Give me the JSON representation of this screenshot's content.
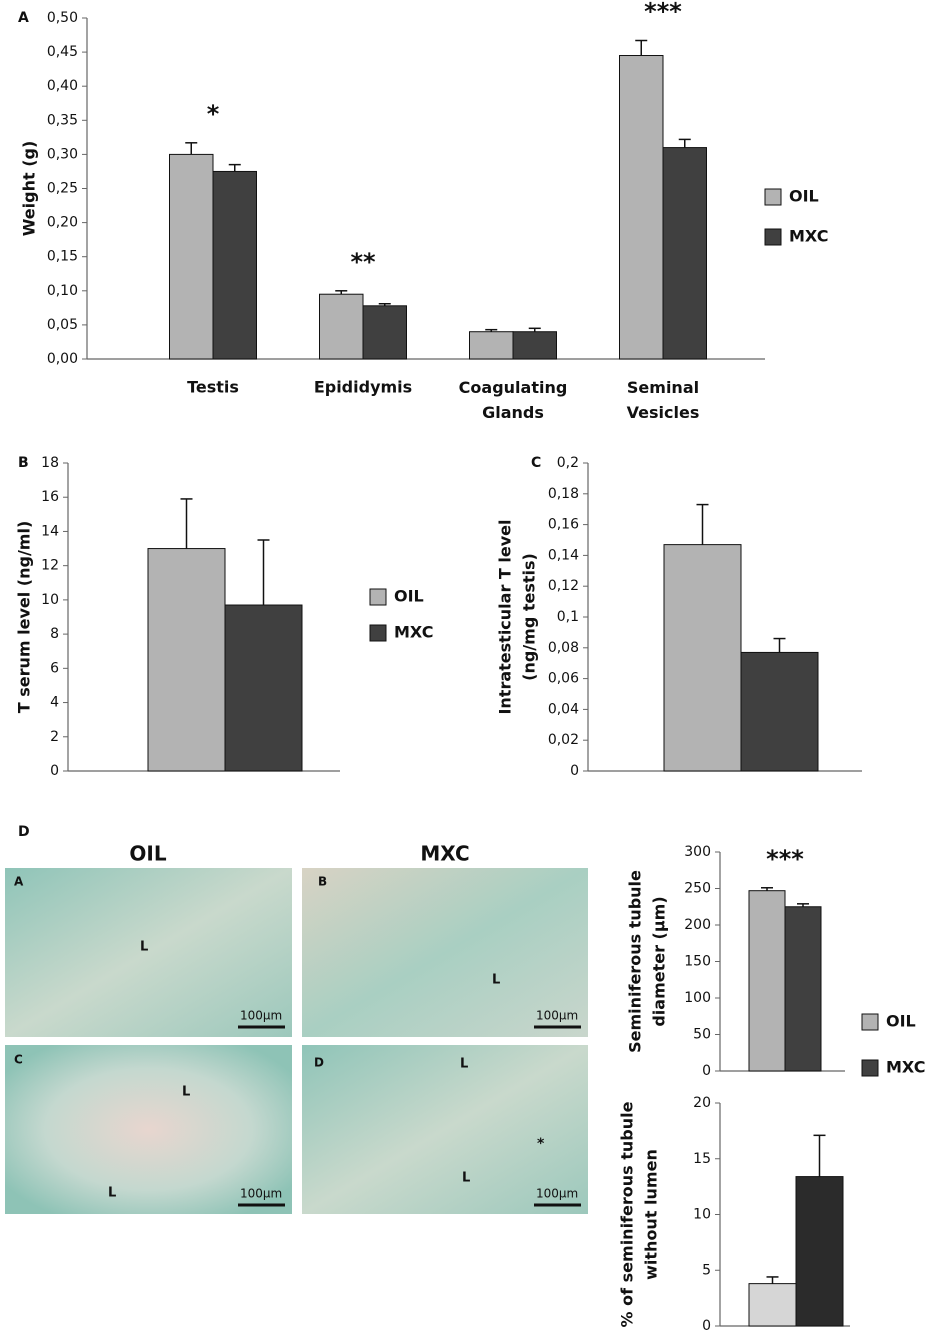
{
  "chart_data": [
    {
      "type": "bar",
      "panel": "A",
      "ylabel": [
        "Weight (g)"
      ],
      "categories": [
        "Testis",
        "Epididymis",
        "Coagulating Glands",
        "Seminal Vesicles"
      ],
      "series": [
        {
          "name": "OIL",
          "color": "#b3b3b3",
          "values": [
            0.3,
            0.095,
            0.04,
            0.445
          ],
          "errors": [
            0.017,
            0.005,
            0.003,
            0.022
          ]
        },
        {
          "name": "MXC",
          "color": "#404040",
          "values": [
            0.275,
            0.078,
            0.04,
            0.31
          ],
          "errors": [
            0.01,
            0.003,
            0.005,
            0.012
          ]
        }
      ],
      "annotations": [
        {
          "text": "*",
          "x": "Testis"
        },
        {
          "text": "**",
          "x": "Epididymis"
        },
        {
          "text": "***",
          "x": "Seminal Vesicles"
        }
      ],
      "ylim": [
        0,
        0.5
      ],
      "yticks": [
        {
          "value": 0,
          "label": "0,00"
        },
        {
          "value": 0.05,
          "label": "0,05"
        },
        {
          "value": 0.1,
          "label": "0,10"
        },
        {
          "value": 0.15,
          "label": "0,15"
        },
        {
          "value": 0.2,
          "label": "0,20"
        },
        {
          "value": 0.25,
          "label": "0,25"
        },
        {
          "value": 0.3,
          "label": "0,30"
        },
        {
          "value": 0.35,
          "label": "0,35"
        },
        {
          "value": 0.4,
          "label": "0,40"
        },
        {
          "value": 0.45,
          "label": "0,45"
        },
        {
          "value": 0.5,
          "label": "0,50"
        }
      ]
    },
    {
      "type": "bar",
      "panel": "B",
      "ylabel": [
        "T serum level (ng/ml)"
      ],
      "series": [
        {
          "name": "OIL",
          "color": "#b3b3b3",
          "values": [
            13
          ],
          "errors": [
            2.9
          ]
        },
        {
          "name": "MXC",
          "color": "#404040",
          "values": [
            9.7
          ],
          "errors": [
            3.8
          ]
        }
      ],
      "ylim": [
        0,
        18
      ],
      "yticks": [
        0,
        2,
        4,
        6,
        8,
        10,
        12,
        14,
        16,
        18
      ]
    },
    {
      "type": "bar",
      "panel": "C",
      "ylabel": [
        "Intratesticular T level",
        "(ng/mg testis)"
      ],
      "series": [
        {
          "color": "#b3b3b3",
          "values": [
            0.147
          ],
          "errors": [
            0.026
          ]
        },
        {
          "color": "#404040",
          "values": [
            0.077
          ],
          "errors": [
            0.009
          ]
        }
      ],
      "ylim": [
        0,
        0.2
      ],
      "yticks": [
        0,
        {
          "value": 0.02,
          "label": "0,02"
        },
        {
          "value": 0.04,
          "label": "0,04"
        },
        {
          "value": 0.06,
          "label": "0,06"
        },
        {
          "value": 0.08,
          "label": "0,08"
        },
        {
          "value": 0.1,
          "label": "0,1"
        },
        {
          "value": 0.12,
          "label": "0,12"
        },
        {
          "value": 0.14,
          "label": "0,14"
        },
        {
          "value": 0.16,
          "label": "0,16"
        },
        {
          "value": 0.18,
          "label": "0,18"
        },
        {
          "value": 0.2,
          "label": "0,2"
        }
      ]
    },
    {
      "type": "bar",
      "ylabel": [
        "Seminiferous tubule",
        "diameter (μm)"
      ],
      "series": [
        {
          "name": "OIL",
          "color": "#b3b3b3",
          "values": [
            247
          ],
          "errors": [
            4
          ]
        },
        {
          "name": "MXC",
          "color": "#404040",
          "values": [
            225
          ],
          "errors": [
            4
          ]
        }
      ],
      "annotations": [
        {
          "text": "***"
        }
      ],
      "ylim": [
        0,
        300
      ],
      "yticks": [
        0,
        50,
        100,
        150,
        200,
        250,
        300
      ]
    },
    {
      "type": "bar",
      "ylabel": [
        "% of seminiferous tubule",
        "without lumen"
      ],
      "series": [
        {
          "color": "#d6d6d6",
          "values": [
            3.8
          ],
          "errors": [
            0.6
          ]
        },
        {
          "color": "#2b2b2b",
          "values": [
            13.4
          ],
          "errors": [
            3.7
          ]
        }
      ],
      "ylim": [
        0,
        20
      ],
      "yticks": [
        0,
        5,
        10,
        15,
        20
      ]
    }
  ],
  "micrographs": {
    "panel": "D",
    "columns": [
      "OIL",
      "MXC"
    ],
    "images": [
      {
        "letter": "A",
        "marks": [
          "L"
        ],
        "scale": "100μm"
      },
      {
        "letter": "B",
        "marks": [
          "L"
        ],
        "scale": "100μm"
      },
      {
        "letter": "C",
        "marks": [
          "L",
          "L"
        ],
        "scale": "100μm"
      },
      {
        "letter": "D",
        "marks": [
          "L",
          "L",
          "*"
        ],
        "scale": "100μm"
      }
    ]
  }
}
